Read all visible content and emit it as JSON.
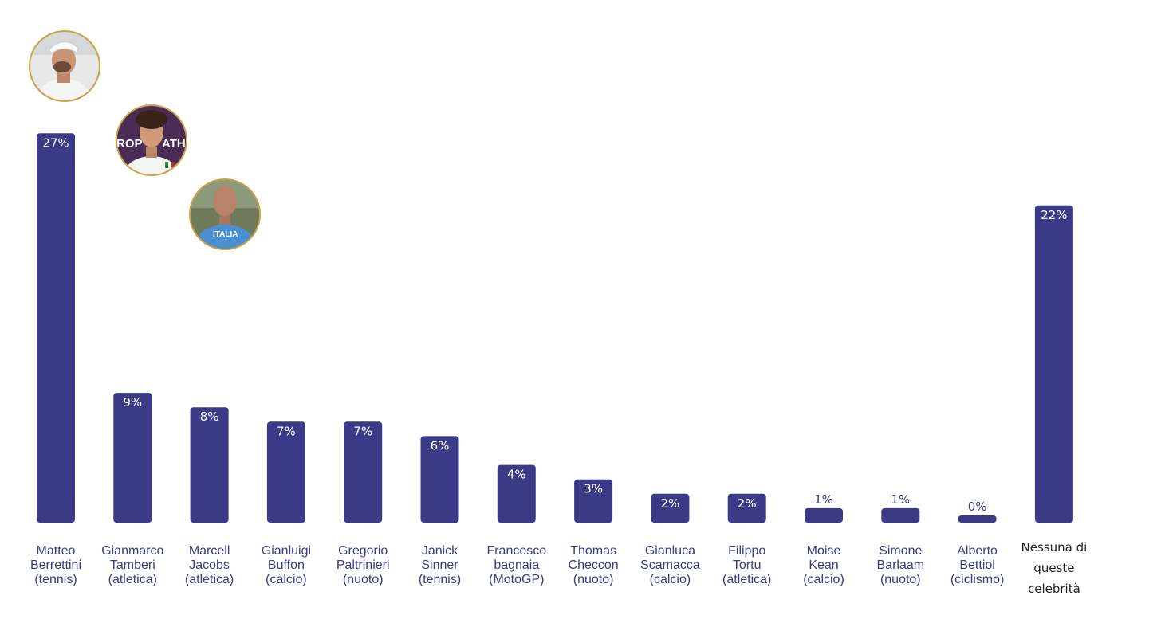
{
  "chart_data": {
    "type": "bar",
    "title": "",
    "xlabel": "",
    "ylabel": "",
    "ylim": [
      0,
      27
    ],
    "grid": false,
    "legend": "none",
    "value_suffix": "%",
    "categories": [
      [
        "Matteo",
        "Berrettini",
        "(tennis)"
      ],
      [
        "Gianmarco",
        "Tamberi",
        "(atletica)"
      ],
      [
        "Marcell",
        "Jacobs",
        "(atletica)"
      ],
      [
        "Gianluigi",
        "Buffon",
        "(calcio)"
      ],
      [
        "Gregorio",
        "Paltrinieri",
        "(nuoto)"
      ],
      [
        "Janick",
        "Sinner",
        "(tennis)"
      ],
      [
        "Francesco",
        "bagnaia",
        "(MotoGP)"
      ],
      [
        "Thomas",
        "Checcon",
        "(nuoto)"
      ],
      [
        "Gianluca",
        "Scamacca",
        "(calcio)"
      ],
      [
        "Filippo",
        "Tortu",
        "(atletica)"
      ],
      [
        "Moise",
        "Kean",
        "(calcio)"
      ],
      [
        "Simone",
        "Barlaam",
        "(nuoto)"
      ],
      [
        "Alberto",
        "Bettiol",
        "(ciclismo)"
      ],
      [
        "Nessuna di",
        "queste",
        "celebrità"
      ]
    ],
    "values": [
      27,
      9,
      8,
      7,
      7,
      6,
      4,
      3,
      2,
      2,
      1,
      1,
      0,
      22
    ],
    "bar_color": "#3b3a86",
    "label_color_inside": "#ffffff",
    "label_color_outside": "#3b3a86"
  },
  "photos": [
    {
      "name": "Matteo Berrettini",
      "icon": "athlete-photo-berrettini"
    },
    {
      "name": "Gianmarco Tamberi",
      "icon": "athlete-photo-tamberi"
    },
    {
      "name": "Marcell Jacobs",
      "icon": "athlete-photo-jacobs"
    }
  ]
}
